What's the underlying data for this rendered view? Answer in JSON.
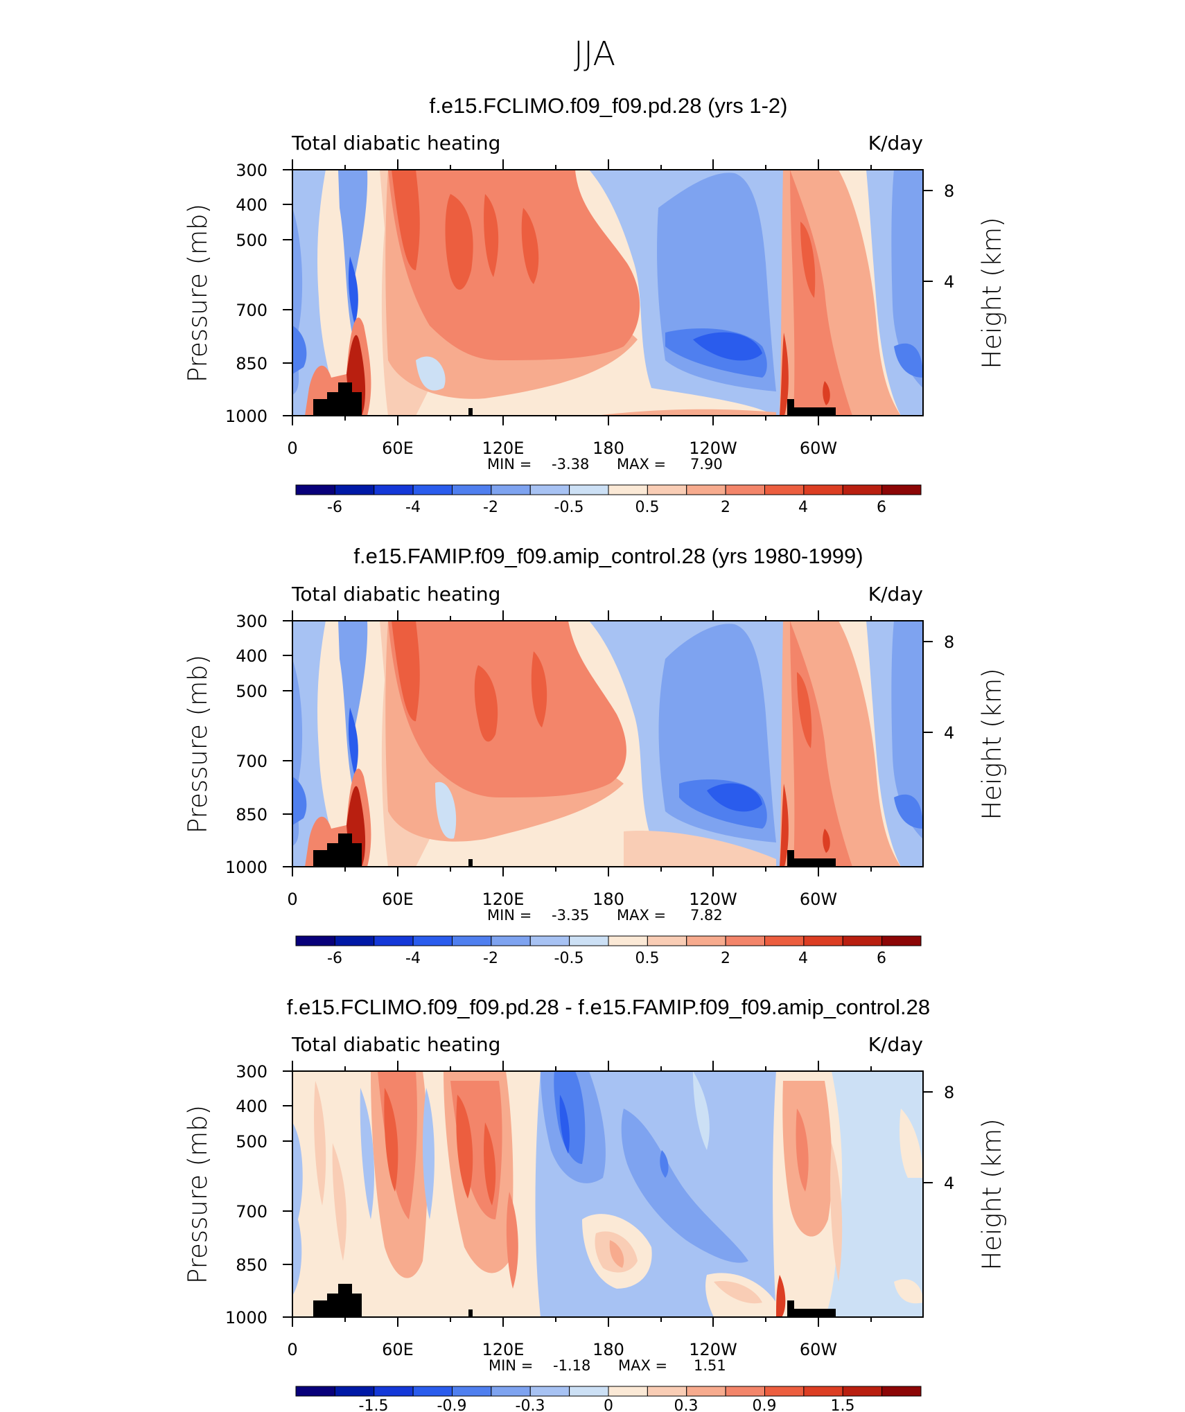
{
  "season": "JJA",
  "panels": [
    {
      "title": "f.e15.FCLIMO.f09_f09.pd.28 (yrs 1-2)",
      "left_label": "Total diabatic heating",
      "right_label": "K/day",
      "stats": {
        "min_label": "MIN =",
        "min": "-3.38",
        "max_label": "MAX =",
        "max": "7.90"
      }
    },
    {
      "title": "f.e15.FAMIP.f09_f09.amip_control.28 (yrs 1980-1999)",
      "left_label": "Total diabatic heating",
      "right_label": "K/day",
      "stats": {
        "min_label": "MIN =",
        "min": "-3.35",
        "max_label": "MAX =",
        "max": "7.82"
      }
    },
    {
      "title": "f.e15.FCLIMO.f09_f09.pd.28 - f.e15.FAMIP.f09_f09.amip_control.28",
      "left_label": "Total diabatic heating",
      "right_label": "K/day",
      "stats": {
        "min_label": "MIN =",
        "min": "-1.18",
        "max_label": "MAX =",
        "max": "1.51"
      }
    }
  ],
  "colors": {
    "palette": [
      "#08007a",
      "#0019a6",
      "#1438d8",
      "#2a5ced",
      "#4f7fef",
      "#7ea3f0",
      "#a7c2f3",
      "#cce0f5",
      "#fbe9d6",
      "#f9cdb5",
      "#f7ab8e",
      "#f3856a",
      "#ec5e3f",
      "#dc3e23",
      "#b91f10",
      "#8c0606"
    ],
    "land": "#000000"
  },
  "chart_data": [
    {
      "type": "contour",
      "title": "f.e15.FCLIMO.f09_f09.pd.28 (yrs 1-2)",
      "variable": "Total diabatic heating",
      "units": "K/day",
      "xlabel": "",
      "ylabel": "Pressure (mb)",
      "ylabel_right": "Height (km)",
      "x_ticks": [
        "0",
        "60E",
        "120E",
        "180",
        "120W",
        "60W"
      ],
      "y_ticks": [
        "300",
        "400",
        "500",
        "700",
        "850",
        "1000"
      ],
      "y_right_ticks": [
        "8",
        "4"
      ],
      "ylim": [
        1000,
        300
      ],
      "levels": [
        -6,
        -5,
        -4,
        -3,
        -2,
        -1,
        -0.5,
        0,
        0.5,
        1,
        2,
        3,
        4,
        5,
        6
      ],
      "colorbar_labels": [
        "-6",
        "-4",
        "-2",
        "-0.5",
        "0.5",
        "2",
        "4",
        "6"
      ],
      "min": -3.38,
      "max": 7.9
    },
    {
      "type": "contour",
      "title": "f.e15.FAMIP.f09_f09.amip_control.28 (yrs 1980-1999)",
      "variable": "Total diabatic heating",
      "units": "K/day",
      "xlabel": "",
      "ylabel": "Pressure (mb)",
      "ylabel_right": "Height (km)",
      "x_ticks": [
        "0",
        "60E",
        "120E",
        "180",
        "120W",
        "60W"
      ],
      "y_ticks": [
        "300",
        "400",
        "500",
        "700",
        "850",
        "1000"
      ],
      "y_right_ticks": [
        "8",
        "4"
      ],
      "ylim": [
        1000,
        300
      ],
      "levels": [
        -6,
        -5,
        -4,
        -3,
        -2,
        -1,
        -0.5,
        0,
        0.5,
        1,
        2,
        3,
        4,
        5,
        6
      ],
      "colorbar_labels": [
        "-6",
        "-4",
        "-2",
        "-0.5",
        "0.5",
        "2",
        "4",
        "6"
      ],
      "min": -3.35,
      "max": 7.82
    },
    {
      "type": "contour",
      "title": "f.e15.FCLIMO.f09_f09.pd.28 - f.e15.FAMIP.f09_f09.amip_control.28",
      "variable": "Total diabatic heating",
      "units": "K/day",
      "xlabel": "",
      "ylabel": "Pressure (mb)",
      "ylabel_right": "Height (km)",
      "x_ticks": [
        "0",
        "60E",
        "120E",
        "180",
        "120W",
        "60W"
      ],
      "y_ticks": [
        "300",
        "400",
        "500",
        "700",
        "850",
        "1000"
      ],
      "y_right_ticks": [
        "8",
        "4"
      ],
      "ylim": [
        1000,
        300
      ],
      "levels": [
        -1.8,
        -1.5,
        -1.2,
        -0.9,
        -0.6,
        -0.3,
        -0.1,
        0,
        0.1,
        0.3,
        0.6,
        0.9,
        1.2,
        1.5,
        1.8
      ],
      "colorbar_labels": [
        "-1.5",
        "-0.9",
        "-0.3",
        "0",
        "0.3",
        "0.9",
        "1.5"
      ],
      "min": -1.18,
      "max": 1.51
    }
  ]
}
